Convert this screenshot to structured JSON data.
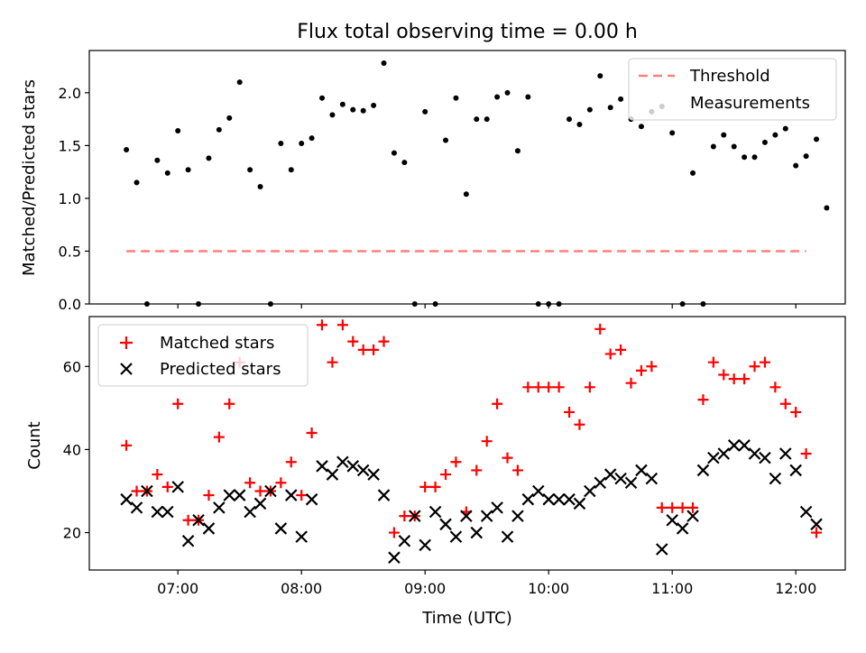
{
  "chart_data": [
    {
      "type": "scatter",
      "title": "Flux total observing time = 0.00 h",
      "xlabel": "",
      "ylabel": "Matched/Predicted stars",
      "ylim": [
        0,
        2.4
      ],
      "xlim": [
        "06:17",
        "12:24"
      ],
      "yticks": [
        "0.0",
        "0.5",
        "1.0",
        "1.5",
        "2.0"
      ],
      "grid": false,
      "legend_position": "top-right",
      "threshold": {
        "name": "Threshold",
        "value": 0.5,
        "x_start": "06:35",
        "x_end": "12:05",
        "color": "#ff7f7f"
      },
      "series": [
        {
          "name": "Measurements",
          "color": "#000000",
          "points": [
            [
              "06:35",
              1.46
            ],
            [
              "06:40",
              1.15
            ],
            [
              "06:45",
              0.0
            ],
            [
              "06:50",
              1.36
            ],
            [
              "06:55",
              1.24
            ],
            [
              "07:00",
              1.64
            ],
            [
              "07:05",
              1.27
            ],
            [
              "07:10",
              0.0
            ],
            [
              "07:15",
              1.38
            ],
            [
              "07:20",
              1.65
            ],
            [
              "07:25",
              1.76
            ],
            [
              "07:30",
              2.1
            ],
            [
              "07:35",
              1.27
            ],
            [
              "07:40",
              1.11
            ],
            [
              "07:45",
              0.0
            ],
            [
              "07:50",
              1.52
            ],
            [
              "07:55",
              1.27
            ],
            [
              "08:00",
              1.52
            ],
            [
              "08:05",
              1.57
            ],
            [
              "08:10",
              1.95
            ],
            [
              "08:15",
              1.79
            ],
            [
              "08:20",
              1.89
            ],
            [
              "08:25",
              1.84
            ],
            [
              "08:30",
              1.83
            ],
            [
              "08:35",
              1.88
            ],
            [
              "08:40",
              2.28
            ],
            [
              "08:45",
              1.43
            ],
            [
              "08:50",
              1.34
            ],
            [
              "08:55",
              0.0
            ],
            [
              "09:00",
              1.82
            ],
            [
              "09:05",
              0.0
            ],
            [
              "09:10",
              1.55
            ],
            [
              "09:15",
              1.95
            ],
            [
              "09:20",
              1.04
            ],
            [
              "09:25",
              1.75
            ],
            [
              "09:30",
              1.75
            ],
            [
              "09:35",
              1.96
            ],
            [
              "09:40",
              2.0
            ],
            [
              "09:45",
              1.45
            ],
            [
              "09:50",
              1.96
            ],
            [
              "09:55",
              0.0
            ],
            [
              "10:00",
              0.0
            ],
            [
              "10:05",
              0.0
            ],
            [
              "10:10",
              1.75
            ],
            [
              "10:15",
              1.7
            ],
            [
              "10:20",
              1.84
            ],
            [
              "10:25",
              2.16
            ],
            [
              "10:30",
              1.86
            ],
            [
              "10:35",
              1.94
            ],
            [
              "10:40",
              1.75
            ],
            [
              "10:45",
              1.68
            ],
            [
              "10:50",
              1.82
            ],
            [
              "10:55",
              1.87
            ],
            [
              "11:00",
              1.62
            ],
            [
              "11:05",
              0.0
            ],
            [
              "11:10",
              1.24
            ],
            [
              "11:15",
              0.0
            ],
            [
              "11:20",
              1.49
            ],
            [
              "11:25",
              1.6
            ],
            [
              "11:30",
              1.49
            ],
            [
              "11:35",
              1.39
            ],
            [
              "11:40",
              1.39
            ],
            [
              "11:45",
              1.53
            ],
            [
              "11:50",
              1.6
            ],
            [
              "11:55",
              1.66
            ],
            [
              "12:00",
              1.31
            ],
            [
              "12:05",
              1.4
            ],
            [
              "12:10",
              1.56
            ],
            [
              "12:15",
              0.91
            ]
          ]
        }
      ]
    },
    {
      "type": "scatter",
      "title": "",
      "xlabel": "Time (UTC)",
      "ylabel": "Count",
      "ylim": [
        11,
        72
      ],
      "xlim": [
        "06:17",
        "12:24"
      ],
      "yticks": [
        "20",
        "40",
        "60"
      ],
      "xticks": [
        "07:00",
        "08:00",
        "09:00",
        "10:00",
        "11:00",
        "12:00"
      ],
      "grid": false,
      "legend_position": "top-left",
      "series": [
        {
          "name": "Matched stars",
          "marker": "+",
          "color": "#ff0000",
          "points": [
            [
              "06:35",
              41
            ],
            [
              "06:40",
              30
            ],
            [
              "06:45",
              30
            ],
            [
              "06:50",
              34
            ],
            [
              "06:55",
              31
            ],
            [
              "07:00",
              51
            ],
            [
              "07:05",
              23
            ],
            [
              "07:10",
              23
            ],
            [
              "07:15",
              29
            ],
            [
              "07:20",
              43
            ],
            [
              "07:25",
              51
            ],
            [
              "07:30",
              61
            ],
            [
              "07:35",
              32
            ],
            [
              "07:40",
              30
            ],
            [
              "07:45",
              30
            ],
            [
              "07:50",
              32
            ],
            [
              "07:55",
              37
            ],
            [
              "08:00",
              29
            ],
            [
              "08:05",
              44
            ],
            [
              "08:10",
              70
            ],
            [
              "08:15",
              61
            ],
            [
              "08:20",
              70
            ],
            [
              "08:25",
              66
            ],
            [
              "08:30",
              64
            ],
            [
              "08:35",
              64
            ],
            [
              "08:40",
              66
            ],
            [
              "08:45",
              20
            ],
            [
              "08:50",
              24
            ],
            [
              "08:55",
              24
            ],
            [
              "09:00",
              31
            ],
            [
              "09:05",
              31
            ],
            [
              "09:10",
              34
            ],
            [
              "09:15",
              37
            ],
            [
              "09:20",
              25
            ],
            [
              "09:25",
              35
            ],
            [
              "09:30",
              42
            ],
            [
              "09:35",
              51
            ],
            [
              "09:40",
              38
            ],
            [
              "09:45",
              35
            ],
            [
              "09:50",
              55
            ],
            [
              "09:55",
              55
            ],
            [
              "10:00",
              55
            ],
            [
              "10:05",
              55
            ],
            [
              "10:10",
              49
            ],
            [
              "10:15",
              46
            ],
            [
              "10:20",
              55
            ],
            [
              "10:25",
              69
            ],
            [
              "10:30",
              63
            ],
            [
              "10:35",
              64
            ],
            [
              "10:40",
              56
            ],
            [
              "10:45",
              59
            ],
            [
              "10:50",
              60
            ],
            [
              "10:55",
              26
            ],
            [
              "11:00",
              26
            ],
            [
              "11:05",
              26
            ],
            [
              "11:10",
              26
            ],
            [
              "11:15",
              52
            ],
            [
              "11:20",
              61
            ],
            [
              "11:25",
              58
            ],
            [
              "11:30",
              57
            ],
            [
              "11:35",
              57
            ],
            [
              "11:40",
              60
            ],
            [
              "11:45",
              61
            ],
            [
              "11:50",
              55
            ],
            [
              "11:55",
              51
            ],
            [
              "12:00",
              49
            ],
            [
              "12:05",
              39
            ],
            [
              "12:10",
              20
            ]
          ]
        },
        {
          "name": "Predicted stars",
          "marker": "x",
          "color": "#000000",
          "points": [
            [
              "06:35",
              28
            ],
            [
              "06:40",
              26
            ],
            [
              "06:45",
              30
            ],
            [
              "06:50",
              25
            ],
            [
              "06:55",
              25
            ],
            [
              "07:00",
              31
            ],
            [
              "07:05",
              18
            ],
            [
              "07:10",
              23
            ],
            [
              "07:15",
              21
            ],
            [
              "07:20",
              26
            ],
            [
              "07:25",
              29
            ],
            [
              "07:30",
              29
            ],
            [
              "07:35",
              25
            ],
            [
              "07:40",
              27
            ],
            [
              "07:45",
              30
            ],
            [
              "07:50",
              21
            ],
            [
              "07:55",
              29
            ],
            [
              "08:00",
              19
            ],
            [
              "08:05",
              28
            ],
            [
              "08:10",
              36
            ],
            [
              "08:15",
              34
            ],
            [
              "08:20",
              37
            ],
            [
              "08:25",
              36
            ],
            [
              "08:30",
              35
            ],
            [
              "08:35",
              34
            ],
            [
              "08:40",
              29
            ],
            [
              "08:45",
              14
            ],
            [
              "08:50",
              18
            ],
            [
              "08:55",
              24
            ],
            [
              "09:00",
              17
            ],
            [
              "09:05",
              25
            ],
            [
              "09:10",
              22
            ],
            [
              "09:15",
              19
            ],
            [
              "09:20",
              24
            ],
            [
              "09:25",
              20
            ],
            [
              "09:30",
              24
            ],
            [
              "09:35",
              26
            ],
            [
              "09:40",
              19
            ],
            [
              "09:45",
              24
            ],
            [
              "09:50",
              28
            ],
            [
              "09:55",
              30
            ],
            [
              "10:00",
              28
            ],
            [
              "10:05",
              28
            ],
            [
              "10:10",
              28
            ],
            [
              "10:15",
              27
            ],
            [
              "10:20",
              30
            ],
            [
              "10:25",
              32
            ],
            [
              "10:30",
              34
            ],
            [
              "10:35",
              33
            ],
            [
              "10:40",
              32
            ],
            [
              "10:45",
              35
            ],
            [
              "10:50",
              33
            ],
            [
              "10:55",
              16
            ],
            [
              "11:00",
              23
            ],
            [
              "11:05",
              21
            ],
            [
              "11:10",
              24
            ],
            [
              "11:15",
              35
            ],
            [
              "11:20",
              38
            ],
            [
              "11:25",
              39
            ],
            [
              "11:30",
              41
            ],
            [
              "11:35",
              41
            ],
            [
              "11:40",
              39
            ],
            [
              "11:45",
              38
            ],
            [
              "11:50",
              33
            ],
            [
              "11:55",
              39
            ],
            [
              "12:00",
              35
            ],
            [
              "12:05",
              25
            ],
            [
              "12:10",
              22
            ]
          ]
        }
      ]
    }
  ]
}
